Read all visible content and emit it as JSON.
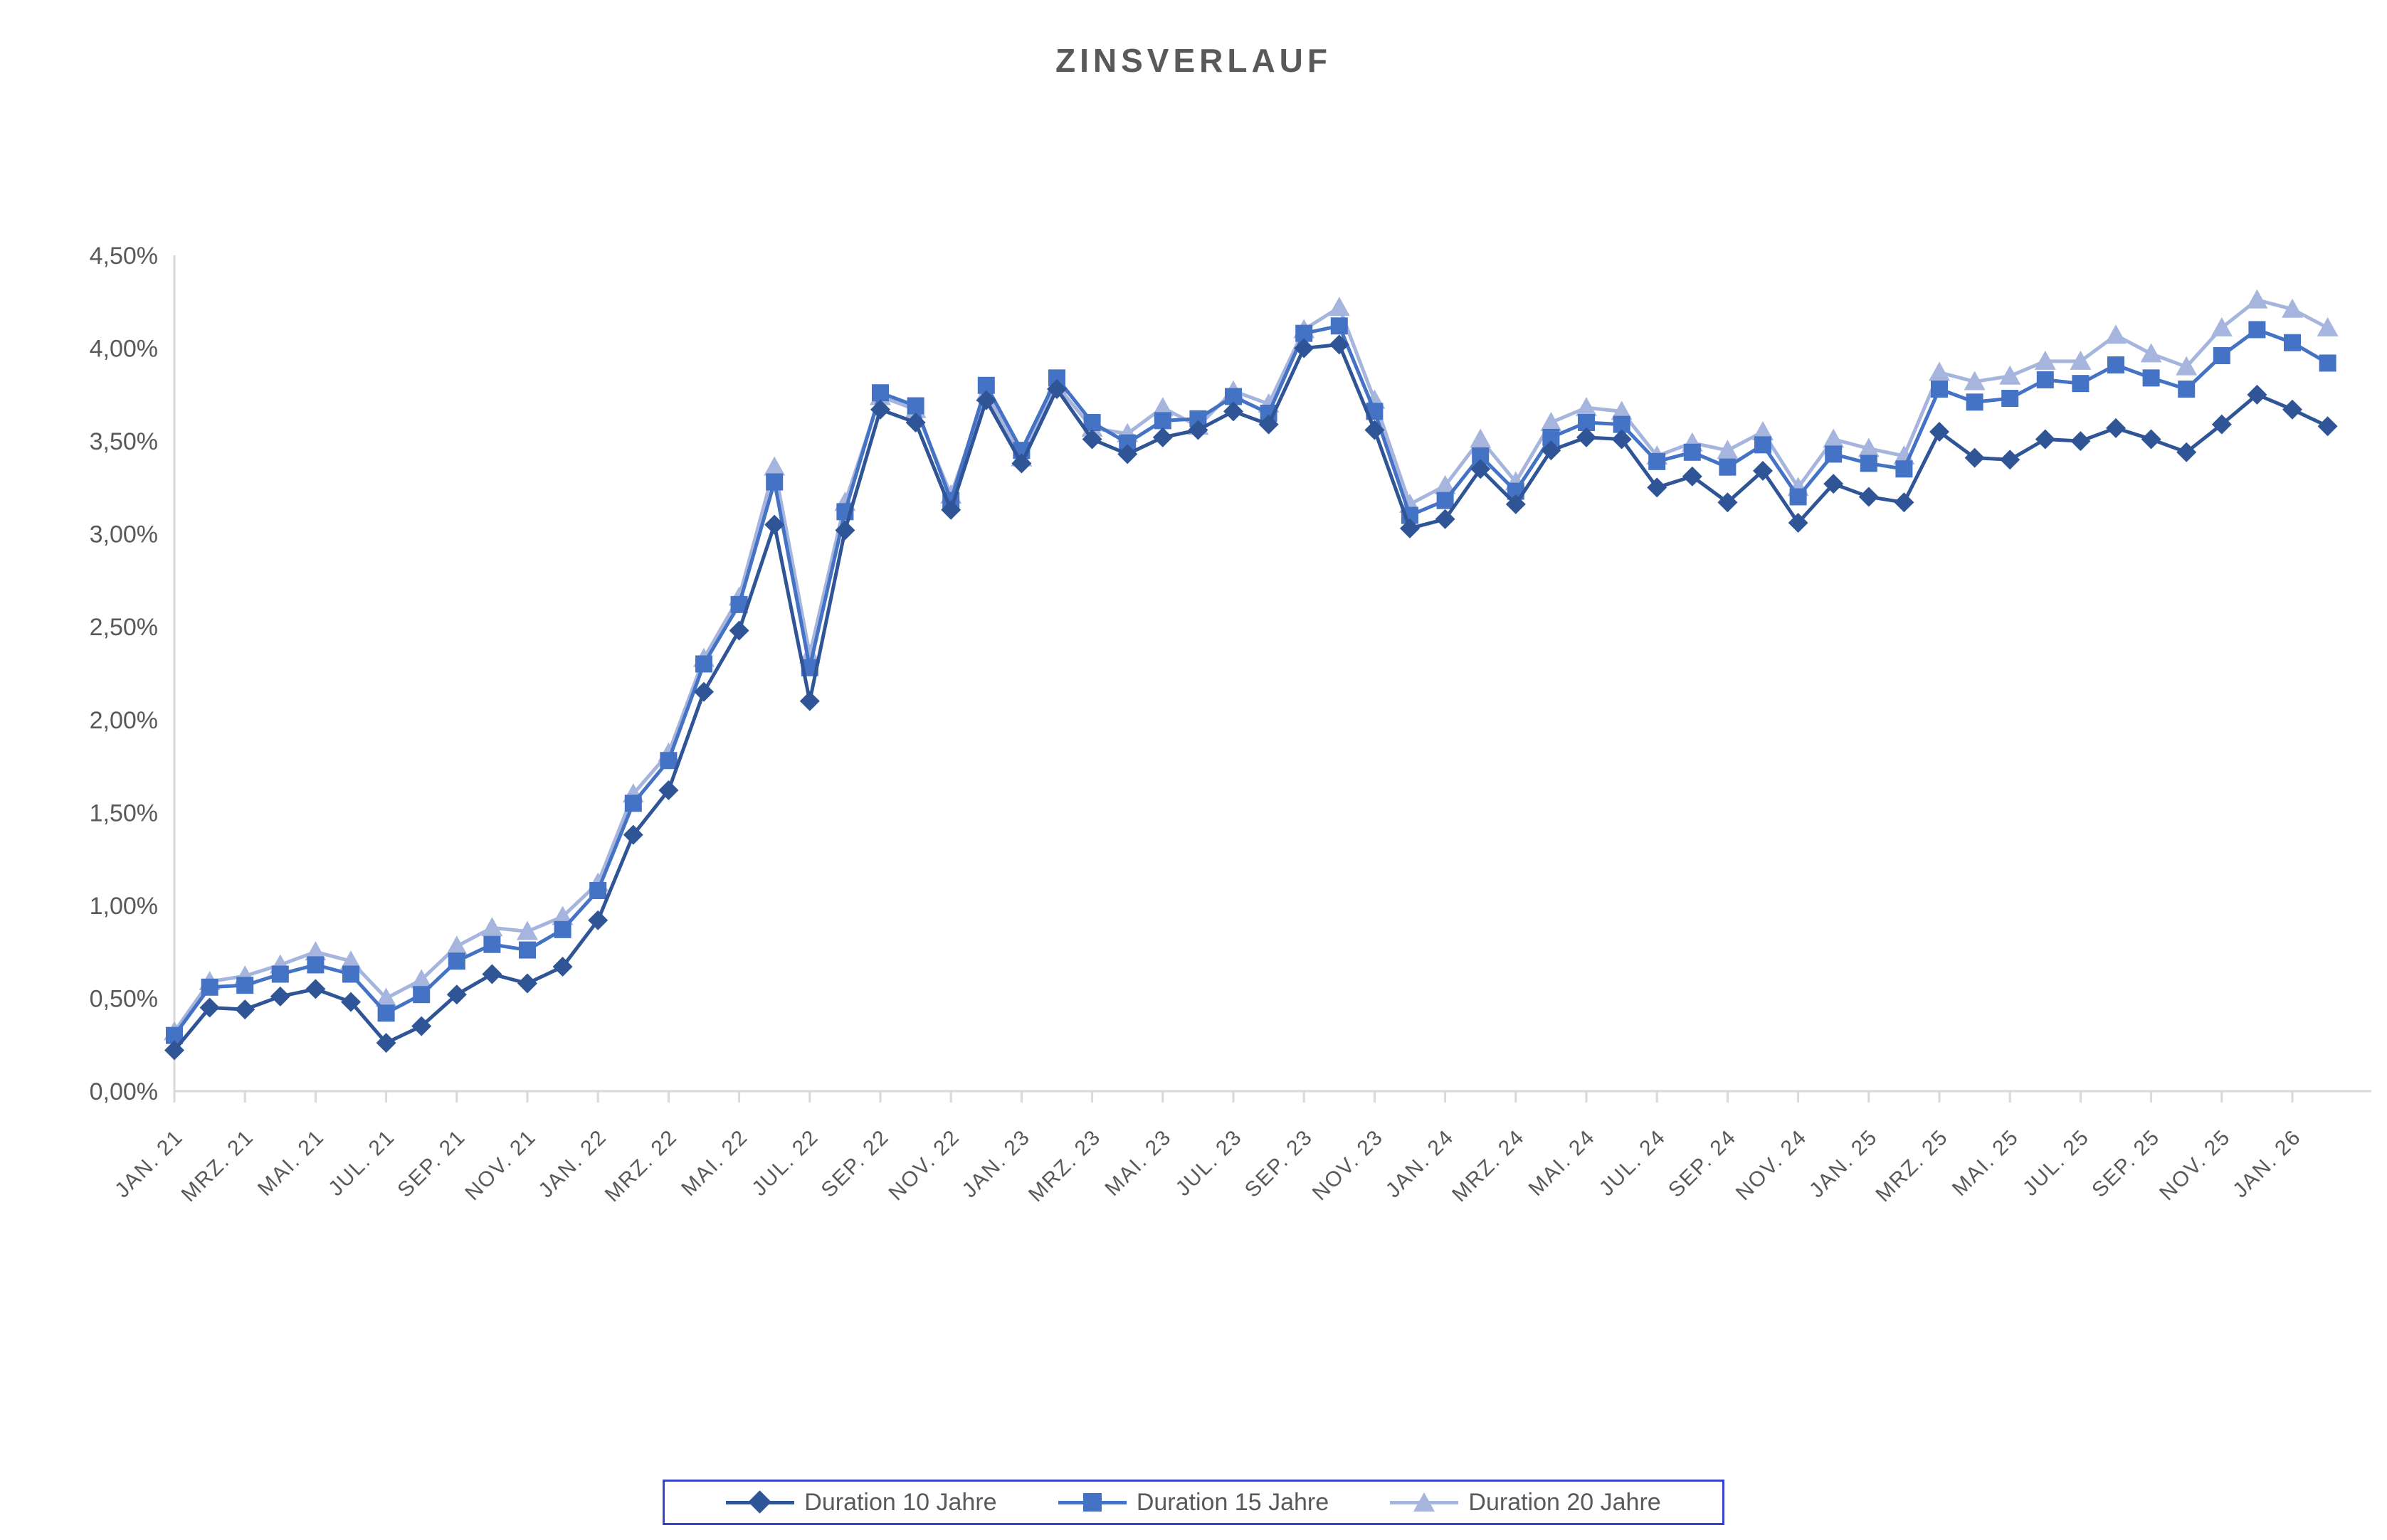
{
  "title": "ZINSVERLAUF",
  "colors": {
    "title_text": "#595959",
    "axis_line": "#D9D9D9",
    "axis_text": "#595959",
    "legend_border": "#3743CB",
    "legend_text": "#595959"
  },
  "chart_data": {
    "type": "line",
    "title": "ZINSVERLAUF",
    "xlabel": "",
    "ylabel": "",
    "ylim": [
      0,
      4.5
    ],
    "grid": "off",
    "legend_position": "bottom-center",
    "y_tick_labels": [
      "0,00%",
      "0,50%",
      "1,00%",
      "1,50%",
      "2,00%",
      "2,50%",
      "3,00%",
      "3,50%",
      "4,00%",
      "4,50%"
    ],
    "x_tick_labels": [
      "JAN. 21",
      "MRZ. 21",
      "MAI. 21",
      "JUL. 21",
      "SEP. 21",
      "NOV. 21",
      "JAN. 22",
      "MRZ. 22",
      "MAI. 22",
      "JUL. 22",
      "SEP. 22",
      "NOV. 22",
      "JAN. 23",
      "MRZ. 23",
      "MAI. 23",
      "JUL. 23",
      "SEP. 23",
      "NOV. 23",
      "JAN. 24",
      "MRZ. 24",
      "MAI. 24",
      "JUL. 24",
      "SEP. 24",
      "NOV. 24",
      "JAN. 25",
      "MRZ. 25",
      "MAI. 25",
      "JUL. 25",
      "SEP. 25",
      "NOV. 25",
      "JAN. 26"
    ],
    "x_months_per_tick": 2,
    "n_points": 62,
    "series": [
      {
        "name": "Duration 10 Jahre",
        "marker": "diamond",
        "color": "#2F5597",
        "values": [
          0.22,
          0.45,
          0.44,
          0.51,
          0.55,
          0.48,
          0.26,
          0.35,
          0.52,
          0.63,
          0.58,
          0.67,
          0.92,
          1.38,
          1.62,
          2.15,
          2.48,
          3.05,
          2.1,
          3.02,
          3.67,
          3.6,
          3.13,
          3.72,
          3.38,
          3.78,
          3.51,
          3.43,
          3.52,
          3.56,
          3.66,
          3.59,
          4.0,
          4.02,
          3.56,
          3.03,
          3.08,
          3.35,
          3.16,
          3.45,
          3.52,
          3.51,
          3.25,
          3.31,
          3.17,
          3.34,
          3.06,
          3.27,
          3.2,
          3.17,
          3.55,
          3.41,
          3.4,
          3.51,
          3.5,
          3.57,
          3.51,
          3.44,
          3.59,
          3.75,
          3.67,
          3.58
        ]
      },
      {
        "name": "Duration 15 Jahre",
        "marker": "square",
        "color": "#4472C4",
        "values": [
          0.3,
          0.56,
          0.57,
          0.63,
          0.68,
          0.63,
          0.42,
          0.52,
          0.7,
          0.79,
          0.76,
          0.87,
          1.08,
          1.55,
          1.78,
          2.3,
          2.62,
          3.28,
          2.28,
          3.12,
          3.76,
          3.69,
          3.18,
          3.8,
          3.45,
          3.84,
          3.6,
          3.49,
          3.61,
          3.62,
          3.74,
          3.65,
          4.08,
          4.12,
          3.66,
          3.1,
          3.18,
          3.42,
          3.23,
          3.52,
          3.6,
          3.59,
          3.39,
          3.44,
          3.36,
          3.48,
          3.2,
          3.43,
          3.38,
          3.35,
          3.78,
          3.71,
          3.73,
          3.83,
          3.81,
          3.91,
          3.84,
          3.78,
          3.96,
          4.1,
          4.03,
          3.92
        ]
      },
      {
        "name": "Duration 20 Jahre",
        "marker": "triangle",
        "color": "#A5B5DE",
        "values": [
          0.32,
          0.59,
          0.62,
          0.68,
          0.75,
          0.7,
          0.5,
          0.6,
          0.78,
          0.88,
          0.86,
          0.94,
          1.12,
          1.6,
          1.82,
          2.33,
          2.66,
          3.36,
          2.35,
          3.17,
          3.74,
          3.67,
          3.21,
          3.76,
          3.41,
          3.8,
          3.57,
          3.54,
          3.68,
          3.58,
          3.77,
          3.7,
          4.1,
          4.22,
          3.72,
          3.16,
          3.26,
          3.51,
          3.28,
          3.6,
          3.68,
          3.66,
          3.42,
          3.49,
          3.45,
          3.55,
          3.25,
          3.51,
          3.46,
          3.42,
          3.87,
          3.82,
          3.85,
          3.93,
          3.93,
          4.07,
          3.97,
          3.9,
          4.11,
          4.26,
          4.21,
          4.11
        ]
      }
    ]
  },
  "legend": {
    "item1": "Duration 10 Jahre",
    "item2": "Duration 15 Jahre",
    "item3": "Duration 20 Jahre"
  }
}
